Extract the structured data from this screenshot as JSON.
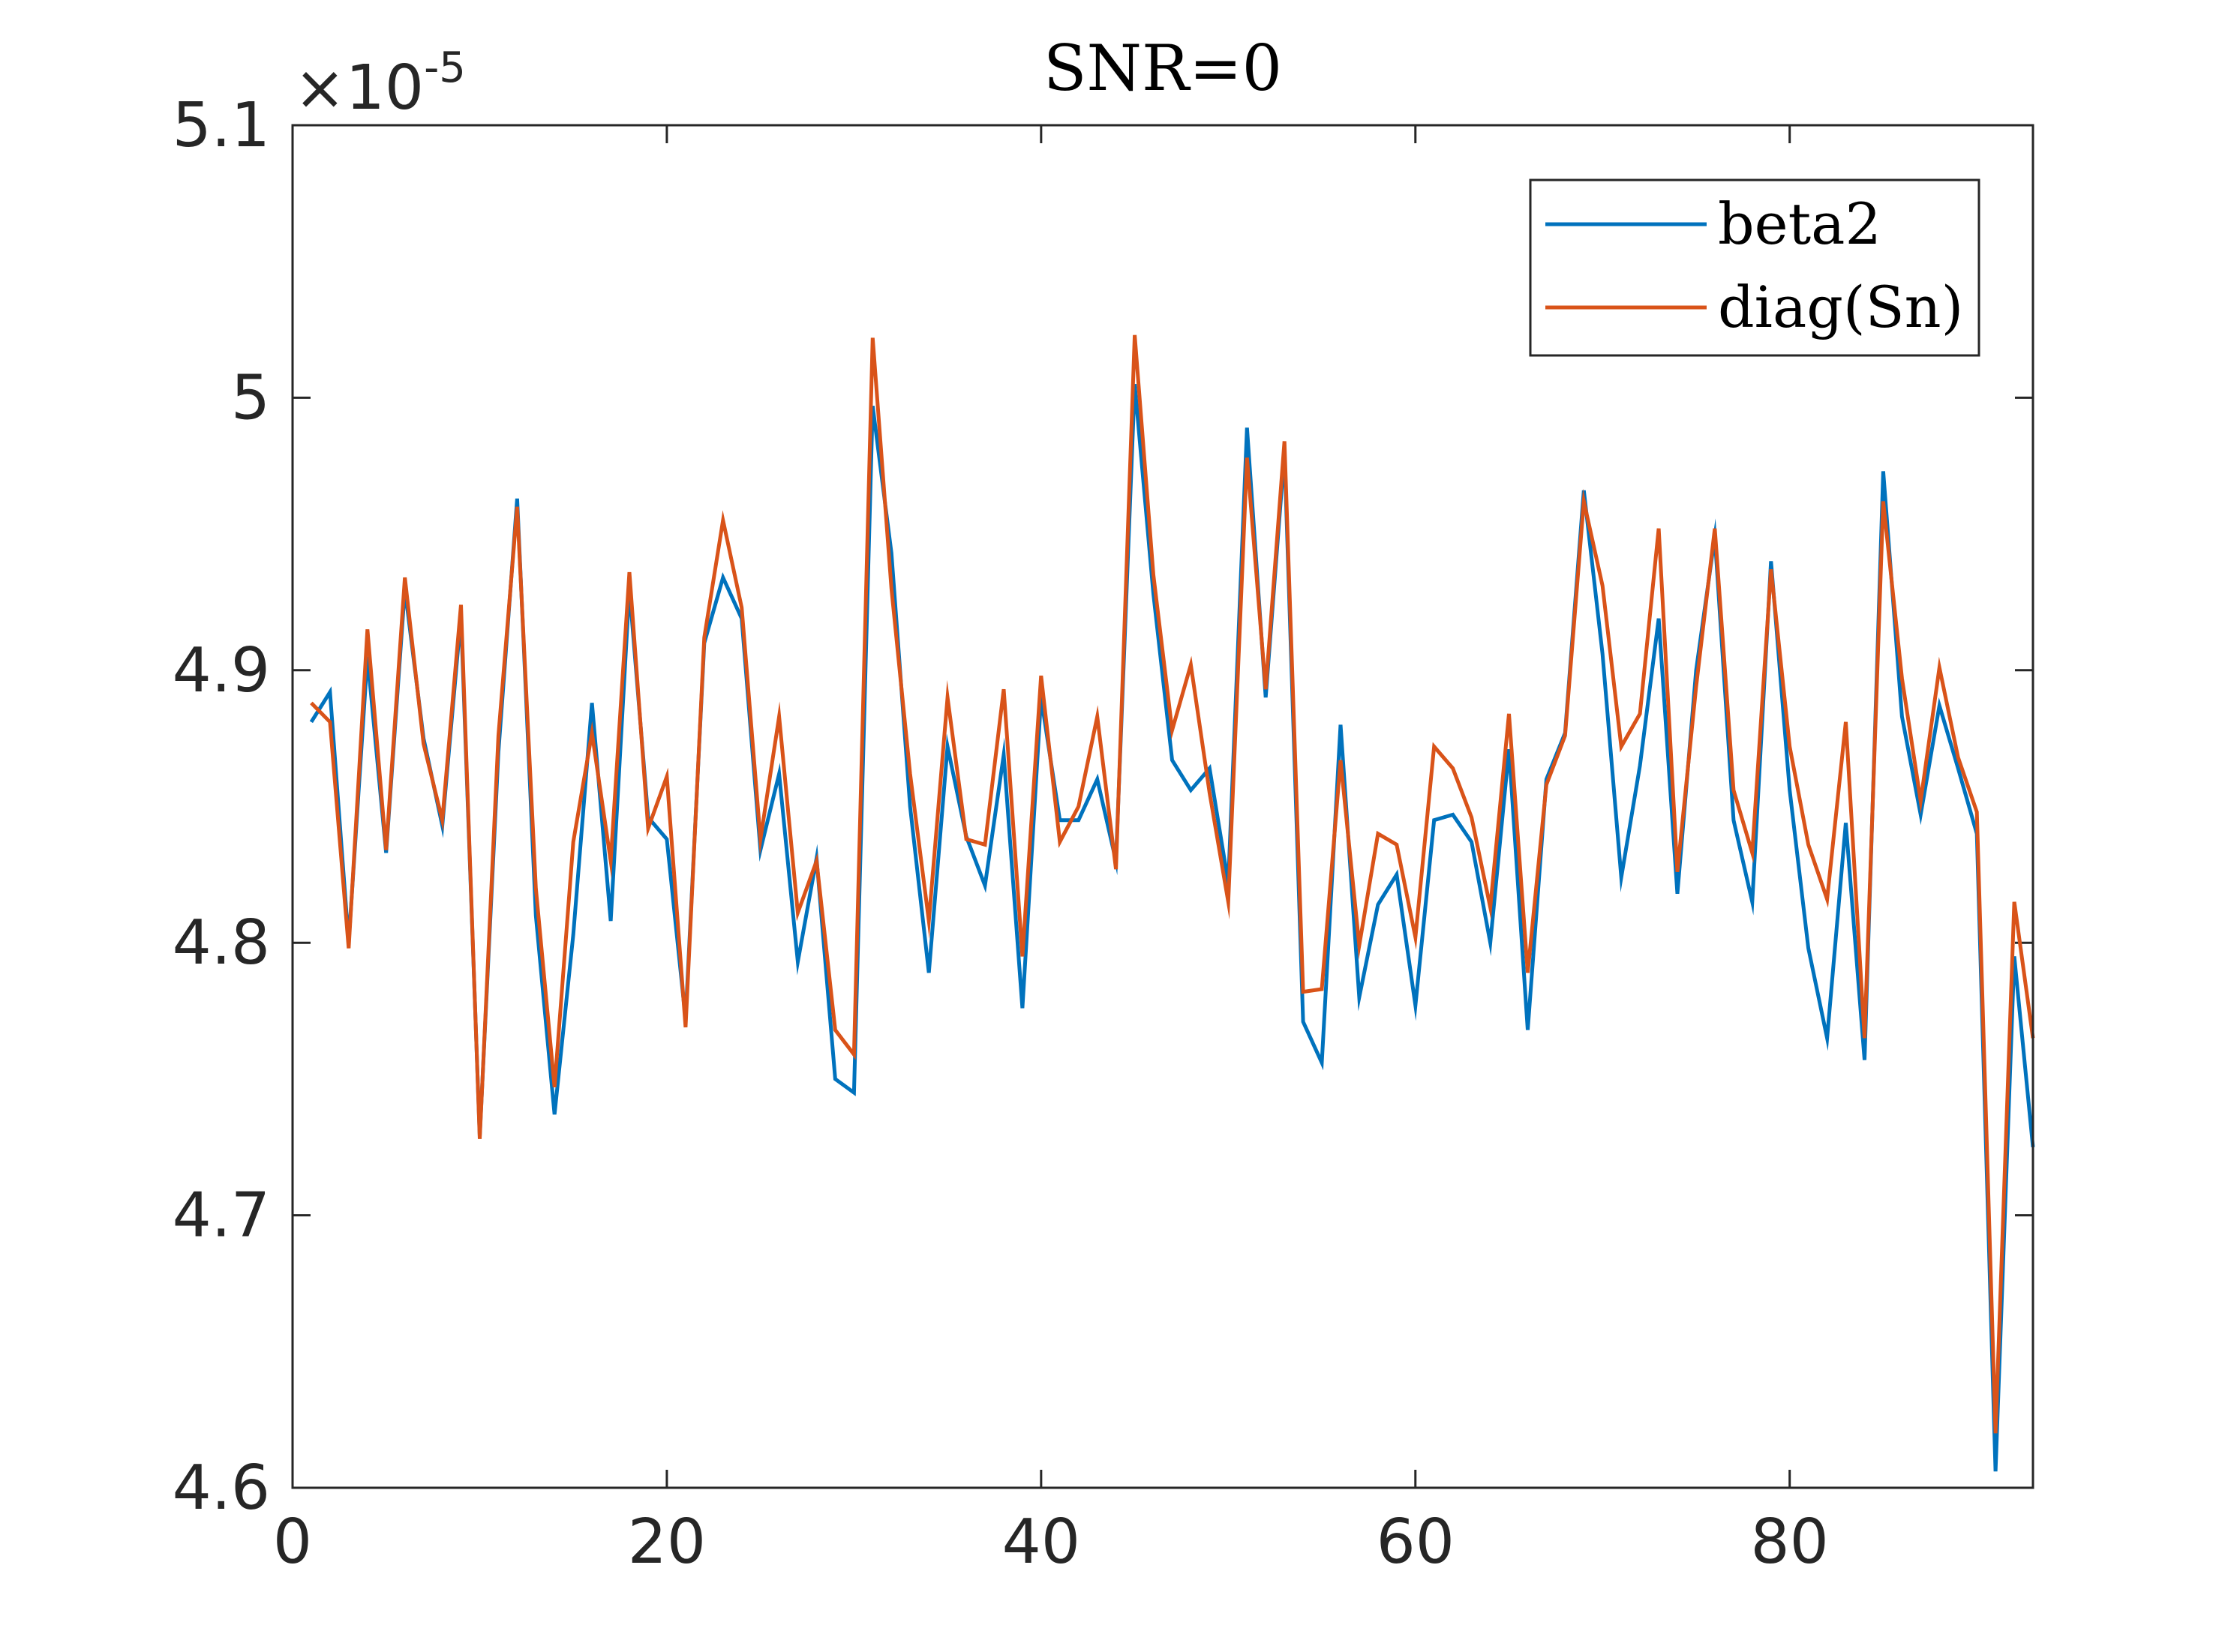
{
  "chart_data": {
    "type": "line",
    "title": "SNR=0",
    "xlabel": "",
    "ylabel": "",
    "xlim": [
      0,
      93
    ],
    "ylim": [
      4.6,
      5.1
    ],
    "y_exponent_label": "×10",
    "y_exponent_power": "-5",
    "xticks": [
      0,
      20,
      40,
      60,
      80
    ],
    "xtick_labels": [
      "0",
      "20",
      "40",
      "60",
      "80"
    ],
    "yticks": [
      4.6,
      4.7,
      4.8,
      4.9,
      5.0,
      5.1
    ],
    "ytick_labels": [
      "4.6",
      "4.7",
      "4.8",
      "4.9",
      "5",
      "5.1"
    ],
    "grid": false,
    "legend_position": "top-right",
    "x": [
      1,
      2,
      3,
      4,
      5,
      6,
      7,
      8,
      9,
      10,
      11,
      12,
      13,
      14,
      15,
      16,
      17,
      18,
      19,
      20,
      21,
      22,
      23,
      24,
      25,
      26,
      27,
      28,
      29,
      30,
      31,
      32,
      33,
      34,
      35,
      36,
      37,
      38,
      39,
      40,
      41,
      42,
      43,
      44,
      45,
      46,
      47,
      48,
      49,
      50,
      51,
      52,
      53,
      54,
      55,
      56,
      57,
      58,
      59,
      60,
      61,
      62,
      63,
      64,
      65,
      66,
      67,
      68,
      69,
      70,
      71,
      72,
      73,
      74,
      75,
      76,
      77,
      78,
      79,
      80,
      81,
      82,
      83,
      84,
      85,
      86,
      87,
      88,
      89,
      90,
      91,
      92,
      93
    ],
    "series": [
      {
        "name": "beta2",
        "color": "#0072BD",
        "values": [
          4.881,
          4.892,
          4.8,
          4.905,
          4.833,
          4.93,
          4.875,
          4.843,
          4.92,
          4.729,
          4.87,
          4.963,
          4.81,
          4.737,
          4.803,
          4.888,
          4.808,
          4.93,
          4.846,
          4.838,
          4.772,
          4.91,
          4.934,
          4.919,
          4.834,
          4.862,
          4.793,
          4.831,
          4.75,
          4.745,
          4.997,
          4.943,
          4.85,
          4.789,
          4.872,
          4.839,
          4.821,
          4.869,
          4.776,
          4.89,
          4.845,
          4.845,
          4.86,
          4.83,
          5.005,
          4.928,
          4.867,
          4.856,
          4.864,
          4.822,
          4.989,
          4.89,
          4.98,
          4.771,
          4.756,
          4.88,
          4.78,
          4.814,
          4.825,
          4.777,
          4.845,
          4.847,
          4.837,
          4.8,
          4.871,
          4.768,
          4.86,
          4.877,
          4.966,
          4.906,
          4.824,
          4.865,
          4.919,
          4.818,
          4.9,
          4.949,
          4.845,
          4.815,
          4.94,
          4.856,
          4.798,
          4.765,
          4.844,
          4.757,
          4.973,
          4.883,
          4.847,
          4.887,
          4.864,
          4.84,
          4.606,
          4.795,
          4.725
        ]
      },
      {
        "name": "diag(Sn)",
        "color": "#D95319",
        "values": [
          4.888,
          4.881,
          4.798,
          4.915,
          4.834,
          4.934,
          4.873,
          4.845,
          4.924,
          4.728,
          4.876,
          4.96,
          4.82,
          4.747,
          4.837,
          4.877,
          4.83,
          4.936,
          4.842,
          4.861,
          4.769,
          4.912,
          4.955,
          4.923,
          4.838,
          4.883,
          4.811,
          4.83,
          4.768,
          4.759,
          5.022,
          4.93,
          4.862,
          4.808,
          4.89,
          4.838,
          4.836,
          4.893,
          4.795,
          4.898,
          4.837,
          4.85,
          4.883,
          4.827,
          5.023,
          4.935,
          4.878,
          4.902,
          4.855,
          4.815,
          4.978,
          4.893,
          4.984,
          4.782,
          4.783,
          4.867,
          4.799,
          4.84,
          4.836,
          4.802,
          4.872,
          4.864,
          4.846,
          4.813,
          4.884,
          4.789,
          4.858,
          4.876,
          4.962,
          4.931,
          4.872,
          4.884,
          4.952,
          4.826,
          4.894,
          4.952,
          4.856,
          4.833,
          4.937,
          4.872,
          4.836,
          4.816,
          4.881,
          4.765,
          4.962,
          4.897,
          4.852,
          4.901,
          4.868,
          4.848,
          4.62,
          4.815,
          4.765
        ]
      }
    ]
  }
}
